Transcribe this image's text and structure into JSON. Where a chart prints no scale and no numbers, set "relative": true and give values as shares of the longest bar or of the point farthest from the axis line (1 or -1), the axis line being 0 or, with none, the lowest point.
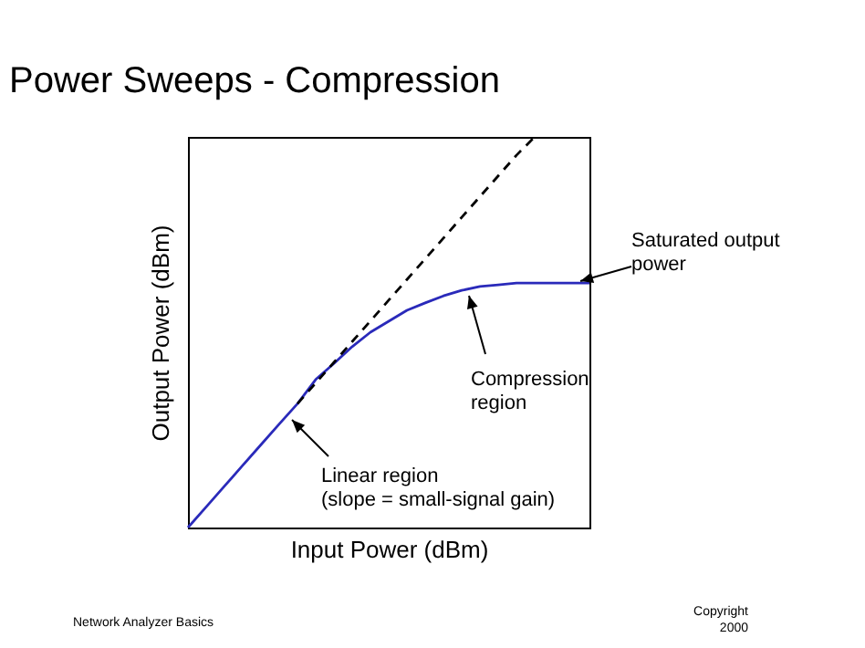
{
  "chart_data": {
    "type": "line",
    "title": "Power Sweeps - Compression",
    "xlabel": "Input Power (dBm)",
    "ylabel": "Output Power (dBm)",
    "relative": true,
    "grid": false,
    "marker": "none",
    "categories": [
      null,
      null,
      null,
      null,
      null,
      null,
      null,
      null,
      null,
      null,
      null,
      null,
      null,
      null,
      null,
      null,
      null,
      null,
      null,
      null,
      null,
      null,
      null
    ],
    "series": [
      {
        "color": "#2a2aba",
        "line_style": "solid",
        "values": [
          0,
          0.053,
          0.106,
          0.159,
          0.212,
          0.265,
          0.317,
          0.379,
          0.42,
          0.463,
          0.5,
          0.528,
          0.556,
          0.575,
          0.593,
          0.607,
          0.617,
          0.621,
          0.626,
          0.626,
          0.626,
          0.626,
          0.626
        ]
      },
      {
        "color": "#000000",
        "line_style": "dashed",
        "values": [
          null,
          null,
          null,
          null,
          null,
          null,
          0.317,
          0.37,
          0.423,
          0.476,
          0.529,
          0.582,
          0.635,
          0.688,
          0.741,
          0.794,
          0.847,
          0.9,
          0.953,
          1.0,
          null,
          null,
          null
        ]
      }
    ],
    "annotations": [
      "Saturated output power",
      "Compression region",
      "Linear region (slope = small-signal gain)",
      "Network Analyzer Basics",
      "Copyright 2000"
    ]
  }
}
